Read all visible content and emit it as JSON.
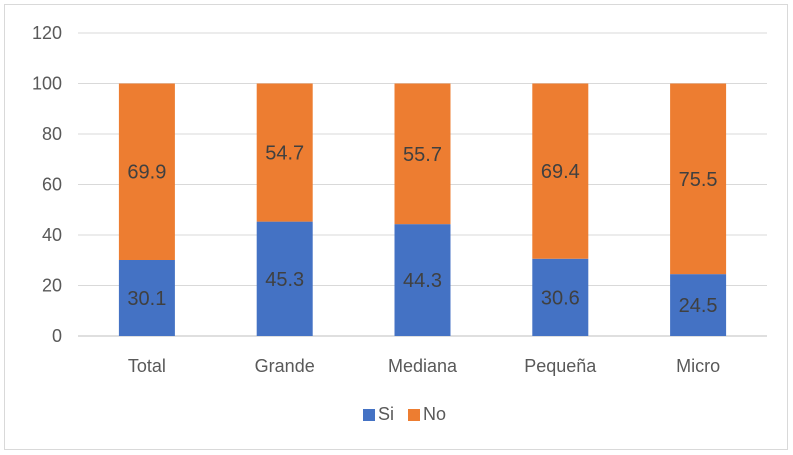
{
  "chart_data": {
    "type": "bar",
    "stacked": true,
    "categories": [
      "Total",
      "Grande",
      "Mediana",
      "Pequeña",
      "Micro"
    ],
    "series": [
      {
        "name": "Si",
        "values": [
          30.1,
          45.3,
          44.3,
          30.6,
          24.5
        ],
        "color": "#4472C4"
      },
      {
        "name": "No",
        "values": [
          69.9,
          54.7,
          55.7,
          69.4,
          75.5
        ],
        "color": "#ED7D31"
      }
    ],
    "ylim": [
      0,
      120
    ],
    "yticks": [
      "0",
      "20",
      "40",
      "60",
      "80",
      "100",
      "120"
    ],
    "grid": true,
    "legend_position": "bottom",
    "title": "",
    "xlabel": "",
    "ylabel": ""
  }
}
